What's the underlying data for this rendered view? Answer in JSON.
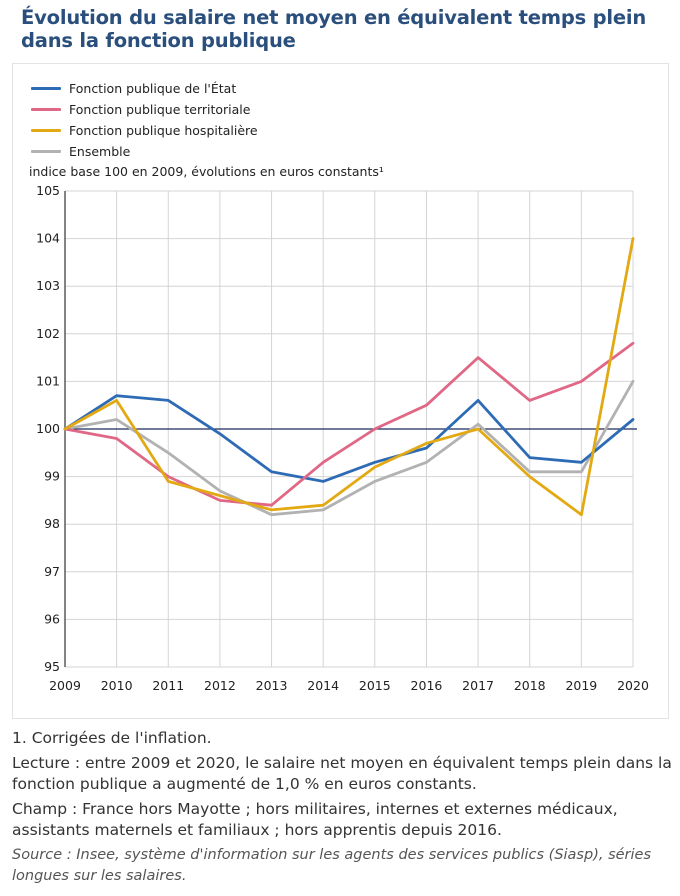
{
  "title": "Évolution du salaire net moyen en équivalent temps plein dans la fonction publique",
  "colors": {
    "etat": "#2e6bb5",
    "territoriale": "#e06886",
    "hospitaliere": "#e2a913",
    "ensemble": "#b2b2b2",
    "reference": "#1f2a5c",
    "grid": "#d4d4d4"
  },
  "chart_data": {
    "type": "line",
    "title": "Évolution du salaire net moyen en équivalent temps plein dans la fonction publique",
    "ylabel": "indice base 100 en 2009, évolutions en euros constants¹",
    "xlabel": "",
    "x": [
      "2009",
      "2010",
      "2011",
      "2012",
      "2013",
      "2014",
      "2015",
      "2016",
      "2017",
      "2018",
      "2019",
      "2020"
    ],
    "ylim": [
      95,
      105
    ],
    "yticks": [
      "95",
      "96",
      "97",
      "98",
      "99",
      "100",
      "101",
      "102",
      "103",
      "104",
      "105"
    ],
    "reference_line": 100,
    "grid": true,
    "legend_position": "top-left",
    "series": [
      {
        "name": "Fonction publique de l'État",
        "color": "#2e6bb5",
        "values": [
          100,
          100.7,
          100.6,
          99.9,
          99.1,
          98.9,
          99.3,
          99.6,
          100.6,
          99.4,
          99.3,
          100.2
        ]
      },
      {
        "name": "Fonction publique territoriale",
        "color": "#e06886",
        "values": [
          100,
          99.8,
          99.0,
          98.5,
          98.4,
          99.3,
          100.0,
          100.5,
          101.5,
          100.6,
          101.0,
          101.8
        ]
      },
      {
        "name": "Fonction publique hospitalière",
        "color": "#e2a913",
        "values": [
          100,
          100.6,
          98.9,
          98.6,
          98.3,
          98.4,
          99.2,
          99.7,
          100.0,
          99.0,
          98.2,
          104.0
        ]
      },
      {
        "name": "Ensemble",
        "color": "#b2b2b2",
        "values": [
          100,
          100.2,
          99.5,
          98.7,
          98.2,
          98.3,
          98.9,
          99.3,
          100.1,
          99.1,
          99.1,
          101.0
        ]
      }
    ]
  },
  "notes": {
    "footnote": "1. Corrigées de l'inflation.",
    "lecture": "Lecture : entre 2009 et 2020, le salaire net moyen en équivalent temps plein dans la fonction publique a augmenté de 1,0 % en euros constants.",
    "champ": "Champ : France hors Mayotte ; hors militaires, internes et externes médicaux, assistants maternels et familiaux ; hors apprentis depuis 2016.",
    "source": "Source : Insee, système d'information sur les agents des services publics (Siasp), séries longues sur les salaires."
  }
}
